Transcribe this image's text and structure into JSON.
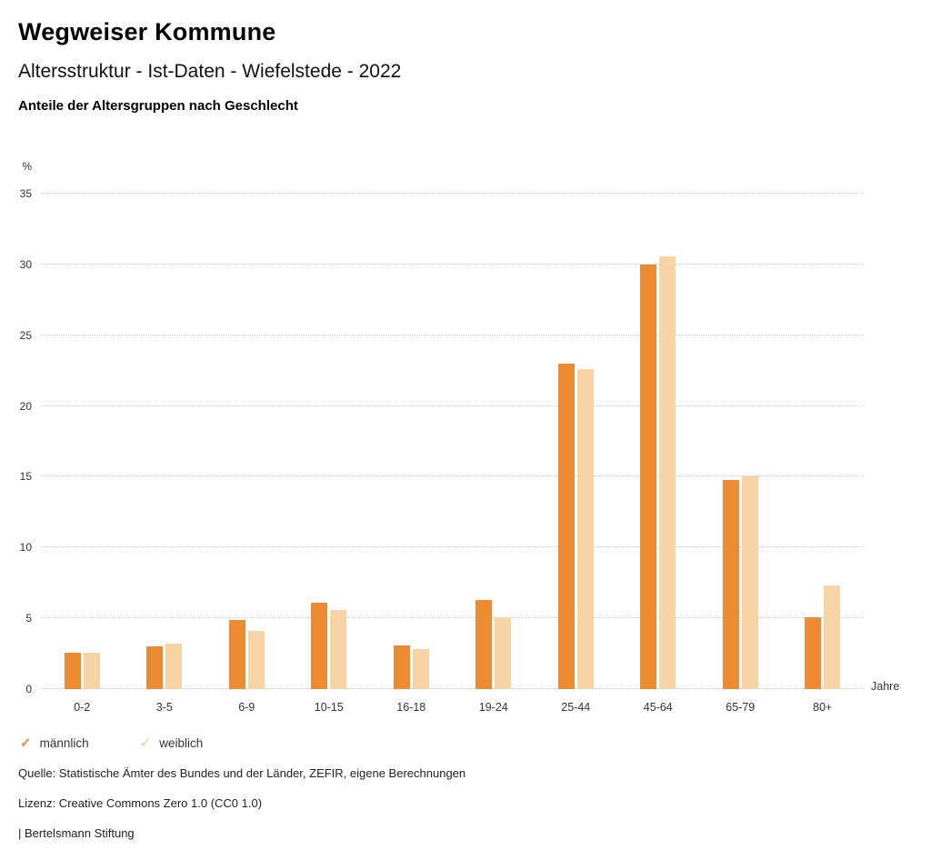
{
  "header": {
    "title": "Wegweiser Kommune",
    "subtitle": "Altersstruktur - Ist-Daten - Wiefelstede - 2022",
    "chart_heading": "Anteile der Altersgruppen nach Geschlecht"
  },
  "chart_data": {
    "type": "bar",
    "title": "Anteile der Altersgruppen nach Geschlecht",
    "categories": [
      "0-2",
      "3-5",
      "6-9",
      "10-15",
      "16-18",
      "19-24",
      "25-44",
      "45-64",
      "65-79",
      "80+"
    ],
    "series": [
      {
        "name": "männlich",
        "color": "#ED8B33",
        "values": [
          2.6,
          3.0,
          4.9,
          6.1,
          3.1,
          6.3,
          23.0,
          30.0,
          14.8,
          5.1
        ]
      },
      {
        "name": "weiblich",
        "color": "#F8D3A4",
        "values": [
          2.6,
          3.2,
          4.1,
          5.6,
          2.8,
          5.1,
          22.6,
          30.6,
          15.0,
          7.3
        ]
      }
    ],
    "ylabel": "%",
    "xlabel": "Jahre",
    "ylim": [
      0,
      35
    ],
    "yticks": [
      0,
      5,
      10,
      15,
      20,
      25,
      30,
      35
    ],
    "grid": "horizontal-dotted",
    "legend_position": "bottom-left",
    "legend_marker": "✓"
  },
  "footer": {
    "source": "Quelle: Statistische Ämter des Bundes und der Länder, ZEFIR, eigene Berechnungen",
    "license": "Lizenz: Creative Commons Zero 1.0 (CC0 1.0)",
    "attribution": "| Bertelsmann Stiftung"
  }
}
